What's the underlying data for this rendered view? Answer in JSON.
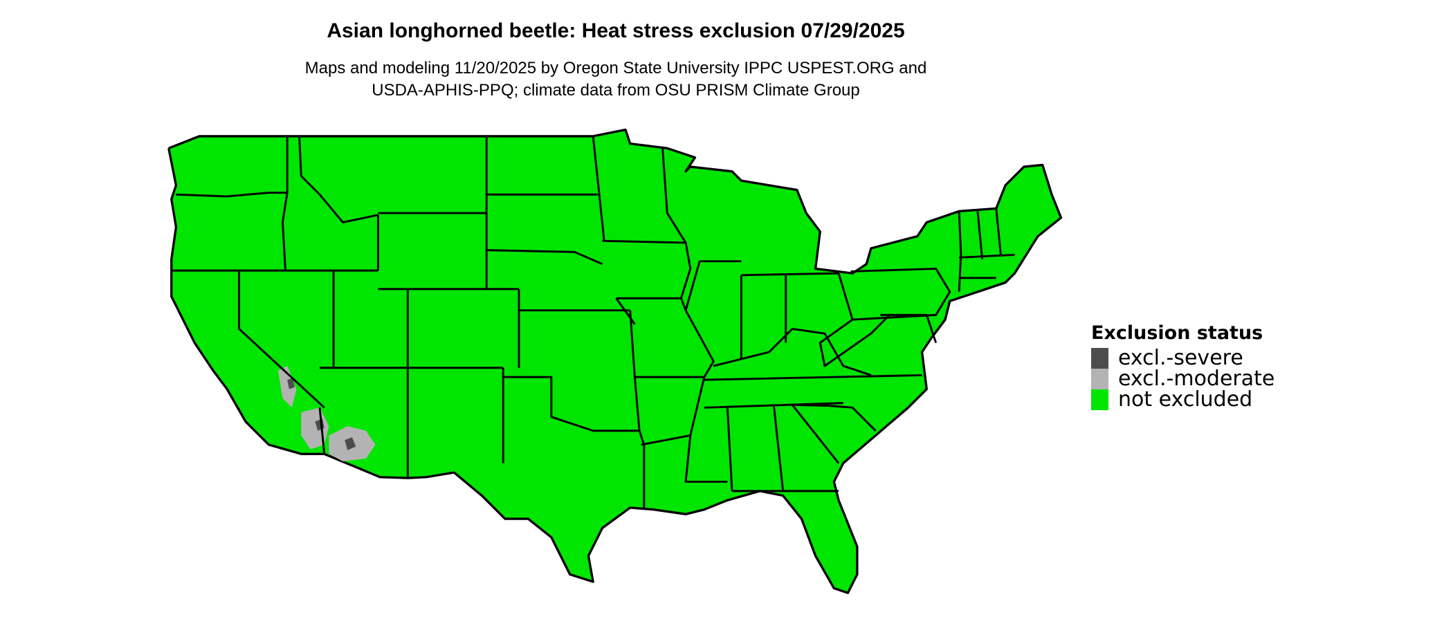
{
  "title": "Asian longhorned beetle: Heat stress exclusion 07/29/2025",
  "subtitle_line1": "Maps and modeling 11/20/2025 by Oregon State University IPPC USPEST.ORG and",
  "subtitle_line2": "USDA-APHIS-PPQ; climate data from OSU PRISM Climate Group",
  "legend": {
    "title": "Exclusion status",
    "items": [
      {
        "label": "excl.-severe",
        "color": "#4d4d4d"
      },
      {
        "label": "excl.-moderate",
        "color": "#b3b3b3"
      },
      {
        "label": "not excluded",
        "color": "#00e600"
      }
    ]
  },
  "map": {
    "region": "contiguous United States",
    "fill": "#00e600",
    "border": "#000000"
  }
}
